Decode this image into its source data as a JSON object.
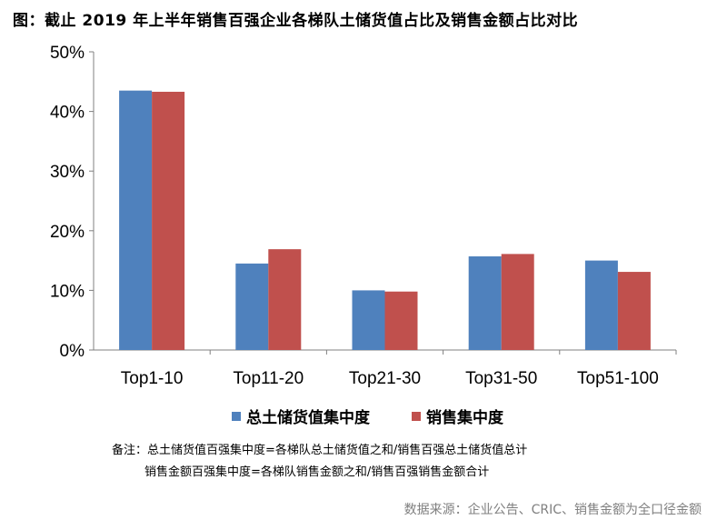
{
  "title": "图：截止 2019 年上半年销售百强企业各梯队土储货值占比及销售金额占比对比",
  "chart_data": {
    "type": "bar",
    "categories": [
      "Top1-10",
      "Top11-20",
      "Top21-30",
      "Top31-50",
      "Top51-100"
    ],
    "series": [
      {
        "name": "总土储货值集中度",
        "values": [
          43.5,
          14.5,
          10.0,
          15.7,
          15.0
        ],
        "color": "#4f81bd"
      },
      {
        "name": "销售集中度",
        "values": [
          43.3,
          16.9,
          9.8,
          16.1,
          13.1
        ],
        "color": "#c0504d"
      }
    ],
    "ylim": [
      0,
      50
    ],
    "yticks": [
      "0%",
      "10%",
      "20%",
      "30%",
      "40%",
      "50%"
    ],
    "grid": false,
    "legend": "bottom"
  },
  "notes": {
    "line1": "备注：总土储货值百强集中度=各梯队总土储货值之和/销售百强总土储货值总计",
    "line2": "销售金额百强集中度=各梯队销售金额之和/销售百强销售金额合计"
  },
  "source": "数据来源：企业公告、CRIC、销售金额为全口径金额"
}
